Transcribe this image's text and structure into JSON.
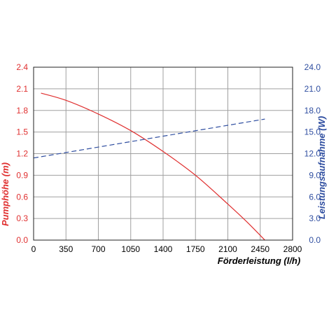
{
  "chart_data": {
    "type": "line",
    "title": "",
    "xlabel": "Förderleistung (l/h)",
    "ylabel_left": "Pumphöhe (m)",
    "ylabel_right": "Leistungsaufnahme (W)",
    "xlim": [
      0,
      2800
    ],
    "ylim_left": [
      0,
      2.4
    ],
    "ylim_right": [
      0,
      24
    ],
    "x_ticks": [
      "0",
      "350",
      "700",
      "1050",
      "1400",
      "1750",
      "2100",
      "2450",
      "2800"
    ],
    "y_left_ticks": [
      "0.0",
      "0.3",
      "0.6",
      "0.9",
      "1.2",
      "1.5",
      "1.8",
      "2.1",
      "2.4"
    ],
    "y_right_ticks": [
      "0.0",
      "3.0",
      "6.0",
      "9.0",
      "12.0",
      "15.0",
      "18.0",
      "21.0",
      "24.0"
    ],
    "grid": true,
    "series": [
      {
        "name": "Pumphöhe (m)",
        "axis": "left",
        "color": "#e03030",
        "style": "solid",
        "x": [
          80,
          350,
          700,
          1050,
          1400,
          1750,
          2100,
          2300,
          2500
        ],
        "y": [
          2.04,
          1.94,
          1.75,
          1.52,
          1.23,
          0.9,
          0.5,
          0.26,
          0.0
        ]
      },
      {
        "name": "Leistungsaufnahme (W)",
        "axis": "right",
        "color": "#2f4ea0",
        "style": "dashed",
        "x": [
          0,
          2500
        ],
        "y": [
          11.4,
          16.8
        ]
      }
    ],
    "colors": {
      "left_axis": "#e03030",
      "right_axis": "#2f4ea0",
      "grid": "#a0a0a0"
    }
  }
}
